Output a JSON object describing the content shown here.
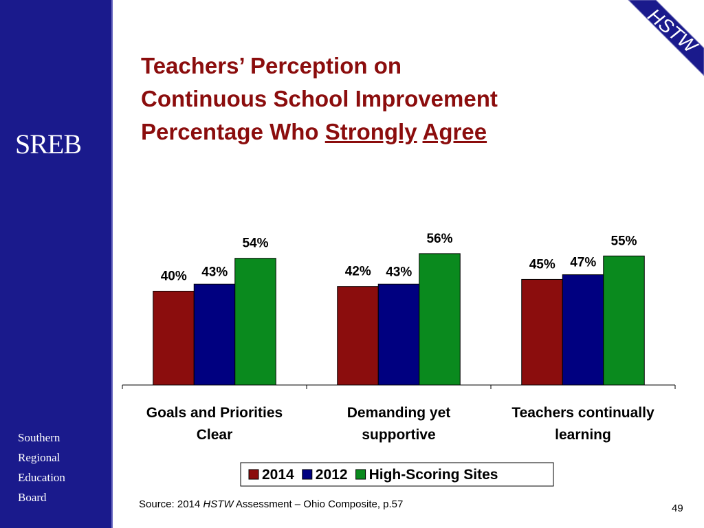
{
  "sidebar": {
    "logo": "SREB",
    "org_lines": [
      "Southern",
      "Regional",
      "Education",
      "Board"
    ]
  },
  "corner_badge": "HSTW",
  "title": {
    "line1": "Teachers’ Perception on",
    "line2": "Continuous School Improvement",
    "line3_prefix": "Percentage Who ",
    "line3_u1": "Strongly",
    "line3_u2": "Agree"
  },
  "chart_data": {
    "type": "bar",
    "categories": [
      [
        "Goals and Priorities",
        "Clear"
      ],
      [
        "Demanding yet",
        "supportive"
      ],
      [
        "Teachers continually",
        "learning"
      ]
    ],
    "series": [
      {
        "name": "2014",
        "values": [
          40,
          42,
          45
        ],
        "labels": [
          "40%",
          "42%",
          "45%"
        ],
        "color": "#8b0d0d"
      },
      {
        "name": "2012",
        "values": [
          43,
          43,
          47
        ],
        "labels": [
          "43%",
          "43%",
          "47%"
        ],
        "color": "#000080"
      },
      {
        "name": "High-Scoring Sites",
        "values": [
          54,
          56,
          55
        ],
        "labels": [
          "54%",
          "56%",
          "55%"
        ],
        "color": "#0a8a1e"
      }
    ],
    "ylim": [
      0,
      100
    ],
    "grid": false,
    "legend": "bottom"
  },
  "footer": {
    "source_prefix": "Source: 2014 ",
    "source_italic": "HSTW",
    "source_suffix": " Assessment – Ohio Composite, p.57",
    "page_number": "49"
  }
}
